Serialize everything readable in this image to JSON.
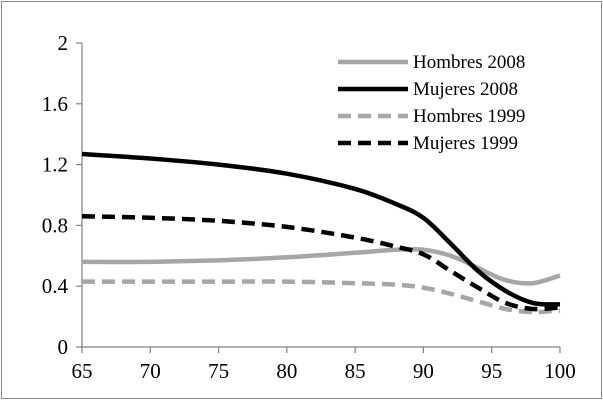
{
  "chart_data": {
    "type": "line",
    "title": "",
    "xlabel": "",
    "ylabel": "",
    "xlim": [
      65,
      100
    ],
    "ylim": [
      0,
      2
    ],
    "x_ticks": [
      "65",
      "70",
      "75",
      "80",
      "85",
      "90",
      "95",
      "100"
    ],
    "y_ticks": [
      "0",
      "0.4",
      "0.8",
      "1.2",
      "1.6",
      "2"
    ],
    "grid": false,
    "legend": "top-right",
    "series": [
      {
        "name": "Hombres 2008",
        "color": "#a6a6a6",
        "dashed": false,
        "x": [
          65,
          70,
          75,
          80,
          85,
          88,
          90,
          92,
          94,
          96,
          98,
          100
        ],
        "y": [
          0.56,
          0.56,
          0.57,
          0.59,
          0.62,
          0.64,
          0.64,
          0.6,
          0.52,
          0.44,
          0.42,
          0.47
        ]
      },
      {
        "name": "Mujeres 2008",
        "color": "#000000",
        "dashed": false,
        "x": [
          65,
          70,
          75,
          80,
          85,
          88,
          90,
          92,
          94,
          96,
          98,
          100
        ],
        "y": [
          1.27,
          1.24,
          1.2,
          1.14,
          1.04,
          0.94,
          0.85,
          0.68,
          0.5,
          0.37,
          0.29,
          0.28
        ]
      },
      {
        "name": "Hombres 1999",
        "color": "#a6a6a6",
        "dashed": true,
        "x": [
          65,
          70,
          75,
          80,
          85,
          88,
          90,
          92,
          94,
          96,
          98,
          100
        ],
        "y": [
          0.43,
          0.43,
          0.43,
          0.43,
          0.42,
          0.41,
          0.39,
          0.35,
          0.3,
          0.25,
          0.23,
          0.24
        ]
      },
      {
        "name": "Mujeres 1999",
        "color": "#000000",
        "dashed": true,
        "x": [
          65,
          70,
          75,
          80,
          85,
          88,
          90,
          92,
          94,
          96,
          98,
          100
        ],
        "y": [
          0.86,
          0.85,
          0.83,
          0.79,
          0.72,
          0.66,
          0.61,
          0.5,
          0.39,
          0.29,
          0.25,
          0.26
        ]
      }
    ]
  }
}
